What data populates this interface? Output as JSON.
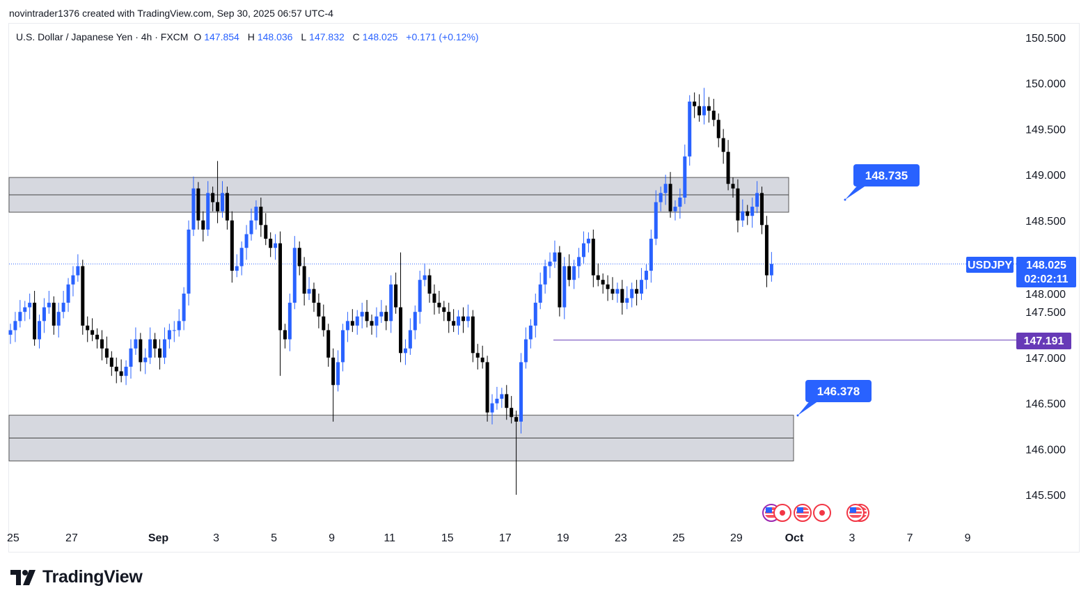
{
  "credit": "novintrader1376 created with TradingView.com, Sep 30, 2025 06:57 UTC-4",
  "legend": {
    "symbol_name": "U.S. Dollar / Japanese Yen · 4h · FXCM",
    "o_label": "O",
    "o": "147.854",
    "h_label": "H",
    "h": "148.036",
    "l_label": "L",
    "l": "147.832",
    "c_label": "C",
    "c": "148.025",
    "change": "+0.171 (+0.12%)"
  },
  "price_tags": {
    "symbol": "USDJPY",
    "last": "148.025",
    "countdown": "02:02:11",
    "hline": "147.191",
    "callout_upper": "148.735",
    "callout_lower": "146.378"
  },
  "colors": {
    "up": "#2962ff",
    "down": "#000000",
    "hline": "#673ab7",
    "zone": "#d1d4dc",
    "accent": "#2962ff"
  },
  "logo": "TradingView",
  "chart_data": {
    "type": "candlestick",
    "title": "U.S. Dollar / Japanese Yen · 4h · FXCM",
    "ylim": [
      145.3,
      150.55
    ],
    "y_ticks": [
      "150.500",
      "150.000",
      "149.500",
      "149.000",
      "148.500",
      "148.000",
      "147.500",
      "147.000",
      "146.500",
      "146.000",
      "145.500"
    ],
    "y_tick_values": [
      150.5,
      150.0,
      149.5,
      149.0,
      148.5,
      148.0,
      147.5,
      147.0,
      146.5,
      146.0,
      145.5
    ],
    "x_ticks": [
      "25",
      "27",
      "Sep",
      "3",
      "5",
      "9",
      "11",
      "15",
      "17",
      "19",
      "23",
      "25",
      "29",
      "Oct",
      "3",
      "7",
      "9"
    ],
    "x_tick_bar_index": [
      1,
      13,
      31,
      43,
      55,
      67,
      79,
      91,
      103,
      115,
      127,
      139,
      151,
      163,
      175,
      187,
      199
    ],
    "first_open": 147.25,
    "closes": [
      147.3,
      147.4,
      147.5,
      147.55,
      147.6,
      147.2,
      147.4,
      147.55,
      147.6,
      147.35,
      147.5,
      147.6,
      147.8,
      147.9,
      148.0,
      147.35,
      147.3,
      147.25,
      147.2,
      147.1,
      147.0,
      146.9,
      146.85,
      146.8,
      146.9,
      147.1,
      147.2,
      146.95,
      147.0,
      147.2,
      147.1,
      147.0,
      147.2,
      147.3,
      147.3,
      147.4,
      147.7,
      148.4,
      148.85,
      148.5,
      148.4,
      148.8,
      148.7,
      148.6,
      148.8,
      148.5,
      147.95,
      148.0,
      148.2,
      148.35,
      148.5,
      148.65,
      148.45,
      148.3,
      148.2,
      148.25,
      147.3,
      147.2,
      147.6,
      148.2,
      148.0,
      147.7,
      147.75,
      147.6,
      147.45,
      147.3,
      147.0,
      146.7,
      146.95,
      147.3,
      147.4,
      147.35,
      147.45,
      147.5,
      147.4,
      147.35,
      147.45,
      147.5,
      147.4,
      147.8,
      147.55,
      147.05,
      147.1,
      147.3,
      147.5,
      147.85,
      147.9,
      147.7,
      147.6,
      147.55,
      147.5,
      147.4,
      147.35,
      147.45,
      147.4,
      147.45,
      147.05,
      147.0,
      146.95,
      146.4,
      146.5,
      146.55,
      146.6,
      146.45,
      146.35,
      146.3,
      146.95,
      147.2,
      147.35,
      147.6,
      147.8,
      148.0,
      148.05,
      148.15,
      147.55,
      148.0,
      147.85,
      148.0,
      148.1,
      148.25,
      148.3,
      147.9,
      147.85,
      147.8,
      147.75,
      147.7,
      147.75,
      147.6,
      147.65,
      147.75,
      147.7,
      147.85,
      147.95,
      148.3,
      148.7,
      148.8,
      148.9,
      148.6,
      148.65,
      148.75,
      149.2,
      149.8,
      149.75,
      149.65,
      149.75,
      149.7,
      149.6,
      149.4,
      149.25,
      148.9,
      148.85,
      148.5,
      148.6,
      148.55,
      148.65,
      148.8,
      148.45,
      147.9,
      148.025
    ],
    "wick_extremes": [
      {
        "index": 43,
        "high": 149.15
      },
      {
        "index": 105,
        "low": 145.5
      },
      {
        "index": 67,
        "low": 146.3
      },
      {
        "index": 144,
        "high": 149.95
      },
      {
        "index": 56,
        "low": 146.8
      },
      {
        "index": 81,
        "high": 148.15
      }
    ],
    "zones": [
      {
        "top": 148.97,
        "bottom": 148.59,
        "mid": 148.78
      },
      {
        "top": 146.37,
        "bottom": 145.87,
        "mid": 146.12
      }
    ],
    "horizontal_line": 147.191,
    "last_price": 148.025
  }
}
